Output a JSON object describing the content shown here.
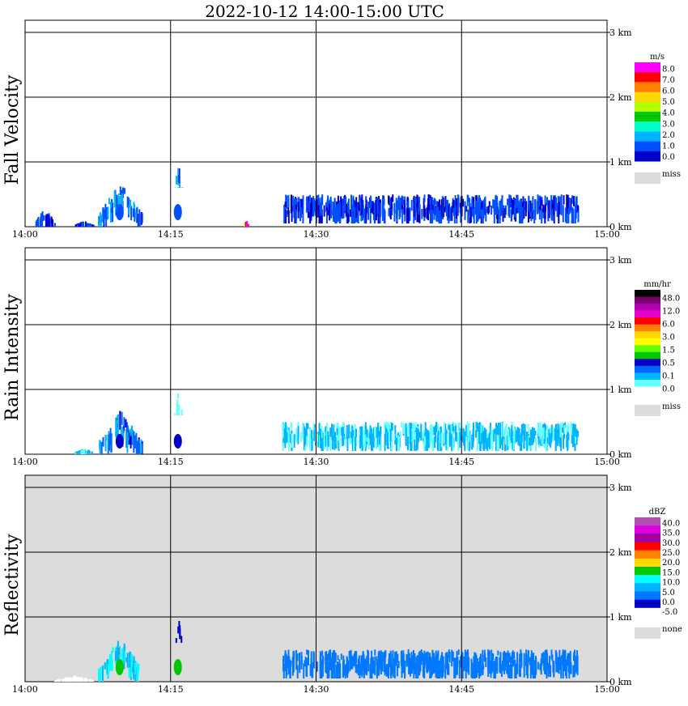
{
  "title": "2022-10-12   14:00-15:00 UTC",
  "time_ticks": [
    "14:00",
    "14:15",
    "14:30",
    "14:45",
    "15:00"
  ],
  "height_ticks": [
    "0 km",
    "1 km",
    "2 km",
    "3 km"
  ],
  "panels": [
    {
      "id": "fall-velocity",
      "ylabel": "Fall Velocity",
      "unit": "m/s",
      "background": "#ffffff",
      "legend": {
        "labels": [
          "8.0",
          "7.0",
          "6.0",
          "5.0",
          "4.0",
          "3.0",
          "2.0",
          "1.0",
          "0.0"
        ],
        "colors": [
          "#ff00ff",
          "#ff0000",
          "#ff7f00",
          "#ffd700",
          "#b4ff00",
          "#00c800",
          "#00ffc8",
          "#00b4ff",
          "#0050ff",
          "#0000c8"
        ],
        "missing_label": "miss"
      }
    },
    {
      "id": "rain-intensity",
      "ylabel": "Rain Intensity",
      "unit": "mm/hr",
      "background": "#ffffff",
      "legend": {
        "labels": [
          "48.0",
          "12.0",
          "6.0",
          "3.0",
          "1.5",
          "0.5",
          "0.1",
          "0.0"
        ],
        "colors": [
          "#000000",
          "#7a006e",
          "#b400b4",
          "#e600c8",
          "#ff0000",
          "#ff7f00",
          "#ffd700",
          "#ffff00",
          "#64ff00",
          "#00c800",
          "#0000c8",
          "#0064ff",
          "#00b4ff",
          "#64ffff",
          "#ffffff"
        ],
        "missing_label": "miss"
      }
    },
    {
      "id": "reflectivity",
      "ylabel": "Reflectivity",
      "unit": "dBZ",
      "background": "#dcdcdc",
      "legend": {
        "labels": [
          "40.0",
          "35.0",
          "30.0",
          "25.0",
          "20.0",
          "15.0",
          "10.0",
          "5.0",
          "0.0",
          "-5.0"
        ],
        "colors": [
          "#b450b4",
          "#dc00dc",
          "#a000a0",
          "#ff0000",
          "#ff7f00",
          "#ffd700",
          "#00c800",
          "#00ffff",
          "#00b4ff",
          "#0078ff",
          "#0000c8",
          "#ffffff"
        ],
        "missing_label": "none"
      }
    }
  ],
  "chart_data": [
    {
      "type": "heatmap",
      "title": "2022-10-12   14:00-15:00 UTC",
      "ylabel": "Fall Velocity",
      "unit": "m/s",
      "xlim": [
        "14:00",
        "15:00"
      ],
      "ylim": [
        0,
        3.0
      ],
      "grid": true,
      "echoes": [
        {
          "t0": 1,
          "t1": 3,
          "h0": 0,
          "h1": 0.3,
          "value": 1.0
        },
        {
          "t0": 5,
          "t1": 7,
          "h0": 0,
          "h1": 0.1,
          "value": 1.0
        },
        {
          "t0": 7.5,
          "t1": 12,
          "h0": 0,
          "h1": 0.7,
          "value": 1.5
        },
        {
          "t0": 15,
          "t1": 16.5,
          "h0": 0.6,
          "h1": 1.0,
          "value": 1.5
        },
        {
          "t0": 22.5,
          "t1": 23,
          "h0": 0,
          "h1": 0.1,
          "value": 7.5
        },
        {
          "t0": 26.5,
          "t1": 57,
          "h0": 0.05,
          "h1": 0.5,
          "value": 1.0
        }
      ]
    },
    {
      "type": "heatmap",
      "ylabel": "Rain Intensity",
      "unit": "mm/hr",
      "xlim": [
        "14:00",
        "15:00"
      ],
      "ylim": [
        0,
        3.0
      ],
      "grid": true,
      "echoes": [
        {
          "t0": 5,
          "t1": 7,
          "h0": 0,
          "h1": 0.1,
          "value": 0.1
        },
        {
          "t0": 7.5,
          "t1": 12,
          "h0": 0,
          "h1": 0.7,
          "value": 0.3
        },
        {
          "t0": 15,
          "t1": 16.5,
          "h0": 0.6,
          "h1": 1.0,
          "value": 0.05
        },
        {
          "t0": 26.5,
          "t1": 57,
          "h0": 0.05,
          "h1": 0.5,
          "value": 0.1
        }
      ]
    },
    {
      "type": "heatmap",
      "ylabel": "Reflectivity",
      "unit": "dBZ",
      "xlim": [
        "14:00",
        "15:00"
      ],
      "ylim": [
        0,
        3.0
      ],
      "grid": true,
      "echoes": [
        {
          "t0": 3,
          "t1": 7,
          "h0": 0,
          "h1": 0.1,
          "value": -5.0
        },
        {
          "t0": 7.5,
          "t1": 12,
          "h0": 0,
          "h1": 0.7,
          "value": 10.0
        },
        {
          "t0": 15,
          "t1": 16.5,
          "h0": 0.6,
          "h1": 1.0,
          "value": 0.0
        },
        {
          "t0": 26.5,
          "t1": 57,
          "h0": 0.05,
          "h1": 0.5,
          "value": 2.5
        }
      ]
    }
  ]
}
